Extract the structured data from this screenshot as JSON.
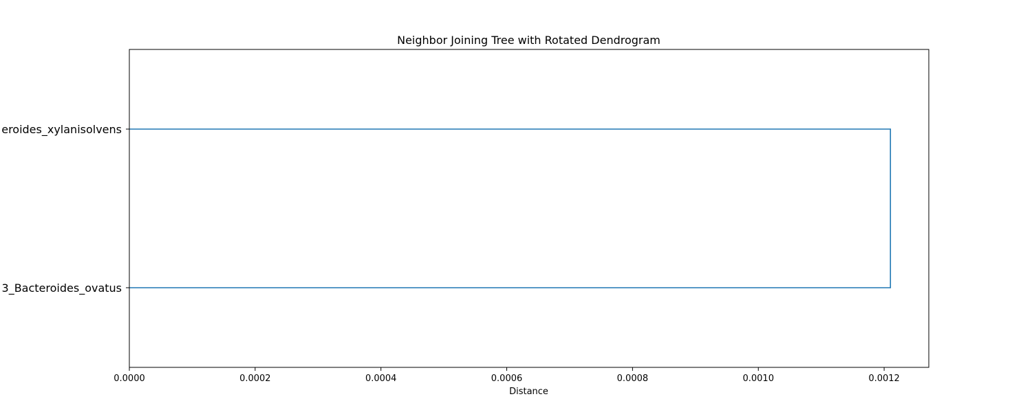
{
  "chart_data": {
    "type": "dendrogram",
    "orientation": "left",
    "title": "Neighbor Joining Tree with Rotated Dendrogram",
    "xlabel": "Distance",
    "ylabel": "",
    "xlim": [
      0,
      0.001271
    ],
    "xticks": [
      0,
      0.0002,
      0.0004,
      0.0006,
      0.0008,
      0.001,
      0.0012
    ],
    "xtick_labels": [
      "0.0000",
      "0.0002",
      "0.0004",
      "0.0006",
      "0.0008",
      "0.0010",
      "0.0012"
    ],
    "leaves": [
      {
        "visible_label": "eroides_xylanisolvens"
      },
      {
        "visible_label": "3_Bacteroides_ovatus"
      }
    ],
    "merges": [
      {
        "left": 0,
        "right": 1,
        "distance": 0.00121
      }
    ],
    "link_color": "#1f77b4",
    "grid": false
  }
}
